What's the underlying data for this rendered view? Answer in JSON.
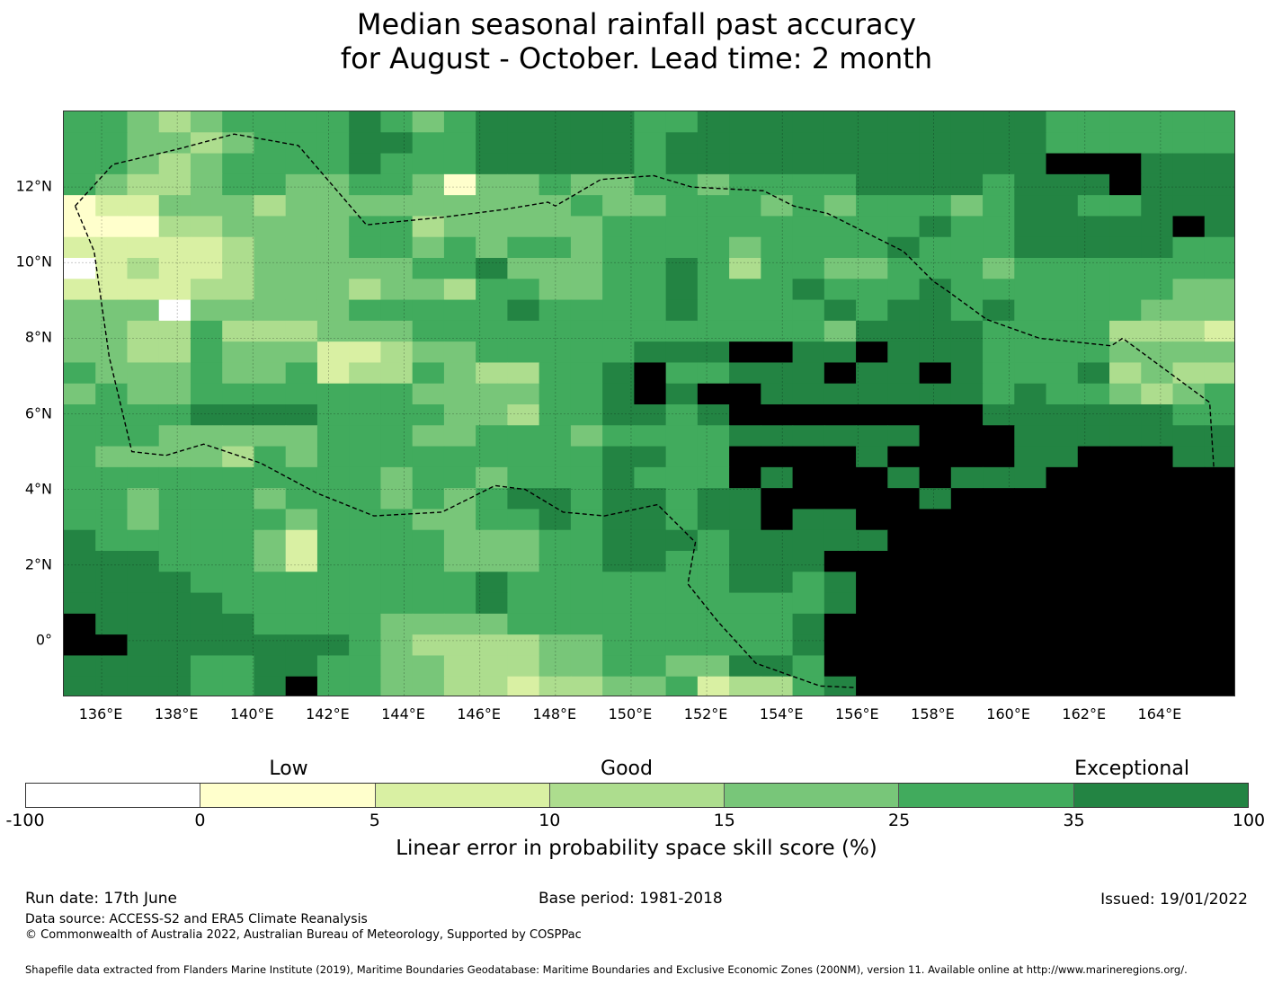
{
  "title_line1": "Median seasonal rainfall past accuracy",
  "title_line2": "for August - October. Lead time: 2 month",
  "map": {
    "lon_range": [
      135,
      166
    ],
    "lat_range": [
      -1.5,
      14.0
    ],
    "cell_size_deg": 0.83,
    "lat_ticks": [
      {
        "value": 12,
        "label": "12°N"
      },
      {
        "value": 10,
        "label": "10°N"
      },
      {
        "value": 8,
        "label": "8°N"
      },
      {
        "value": 6,
        "label": "6°N"
      },
      {
        "value": 4,
        "label": "4°N"
      },
      {
        "value": 2,
        "label": "2°N"
      },
      {
        "value": 0,
        "label": "0°"
      }
    ],
    "lon_ticks": [
      {
        "value": 136,
        "label": "136°E"
      },
      {
        "value": 138,
        "label": "138°E"
      },
      {
        "value": 140,
        "label": "140°E"
      },
      {
        "value": 142,
        "label": "142°E"
      },
      {
        "value": 144,
        "label": "144°E"
      },
      {
        "value": 146,
        "label": "146°E"
      },
      {
        "value": 148,
        "label": "148°E"
      },
      {
        "value": 150,
        "label": "150°E"
      },
      {
        "value": 152,
        "label": "152°E"
      },
      {
        "value": 154,
        "label": "154°E"
      },
      {
        "value": 156,
        "label": "156°E"
      },
      {
        "value": 158,
        "label": "158°E"
      },
      {
        "value": 160,
        "label": "160°E"
      },
      {
        "value": 162,
        "label": "162°E"
      },
      {
        "value": 164,
        "label": "164°E"
      }
    ],
    "grid": true,
    "eez_boundary": [
      [
        135.3,
        11.5
      ],
      [
        136.3,
        12.6
      ],
      [
        138.0,
        13.0
      ],
      [
        139.5,
        13.4
      ],
      [
        141.2,
        13.1
      ],
      [
        143.0,
        11.0
      ],
      [
        145.0,
        11.2
      ],
      [
        146.6,
        11.4
      ],
      [
        147.8,
        11.6
      ],
      [
        148.0,
        11.5
      ],
      [
        149.2,
        12.2
      ],
      [
        150.6,
        12.3
      ],
      [
        151.6,
        12.0
      ],
      [
        153.5,
        11.9
      ],
      [
        154.3,
        11.5
      ],
      [
        155.2,
        11.3
      ],
      [
        157.2,
        10.3
      ],
      [
        158.0,
        9.5
      ],
      [
        158.3,
        9.3
      ],
      [
        159.4,
        8.5
      ],
      [
        160.8,
        8.0
      ],
      [
        162.7,
        7.8
      ],
      [
        163.0,
        8.0
      ],
      [
        165.3,
        6.3
      ],
      [
        165.5,
        3.1
      ],
      [
        164.8,
        2.2
      ],
      [
        163.8,
        1.9
      ],
      [
        162.6,
        1.9
      ],
      [
        160.8,
        2.8
      ],
      [
        159.3,
        3.1
      ],
      [
        158.0,
        2.4
      ],
      [
        157.9,
        1.8
      ],
      [
        157.3,
        -1.3
      ],
      [
        155.0,
        -1.2
      ],
      [
        153.3,
        -0.6
      ],
      [
        152.3,
        0.5
      ],
      [
        151.5,
        1.5
      ],
      [
        151.7,
        2.6
      ],
      [
        150.7,
        3.6
      ],
      [
        149.3,
        3.3
      ],
      [
        148.2,
        3.4
      ],
      [
        147.2,
        4.0
      ],
      [
        146.4,
        4.1
      ],
      [
        145.8,
        3.8
      ],
      [
        145.0,
        3.4
      ],
      [
        143.2,
        3.3
      ],
      [
        141.7,
        3.9
      ],
      [
        140.2,
        4.7
      ],
      [
        139.6,
        4.9
      ],
      [
        138.7,
        5.2
      ],
      [
        137.7,
        4.9
      ],
      [
        136.8,
        5.0
      ],
      [
        136.2,
        7.5
      ],
      [
        135.8,
        10.3
      ],
      [
        135.3,
        11.5
      ]
    ],
    "skill_cells": [
      [
        5,
        5,
        4,
        3,
        4,
        5,
        5,
        5,
        5,
        6,
        5,
        4,
        5,
        6,
        6,
        6,
        6,
        6,
        5,
        5,
        6,
        6,
        6,
        6,
        6,
        6,
        6,
        6,
        6,
        6,
        6,
        5,
        5,
        5,
        5,
        5,
        5
      ],
      [
        5,
        5,
        4,
        4,
        3,
        4,
        5,
        5,
        5,
        6,
        6,
        5,
        5,
        6,
        6,
        6,
        6,
        6,
        5,
        6,
        6,
        6,
        6,
        6,
        6,
        6,
        6,
        6,
        6,
        6,
        6,
        5,
        5,
        5,
        5,
        5,
        5
      ],
      [
        5,
        5,
        4,
        3,
        4,
        5,
        5,
        5,
        5,
        6,
        5,
        5,
        5,
        6,
        6,
        6,
        6,
        6,
        5,
        6,
        6,
        6,
        6,
        6,
        6,
        6,
        6,
        6,
        6,
        6,
        6,
        7,
        7,
        7,
        6,
        6,
        6
      ],
      [
        5,
        4,
        3,
        3,
        4,
        5,
        5,
        4,
        4,
        5,
        5,
        4,
        1,
        4,
        4,
        5,
        4,
        4,
        5,
        5,
        4,
        5,
        5,
        5,
        5,
        6,
        6,
        6,
        6,
        5,
        6,
        6,
        6,
        7,
        6,
        6,
        6
      ],
      [
        1,
        2,
        2,
        4,
        4,
        4,
        3,
        4,
        4,
        4,
        4,
        4,
        4,
        4,
        4,
        4,
        5,
        4,
        4,
        5,
        5,
        5,
        4,
        5,
        4,
        5,
        5,
        5,
        4,
        5,
        6,
        6,
        5,
        5,
        6,
        6,
        6
      ],
      [
        1,
        1,
        1,
        3,
        3,
        4,
        4,
        4,
        4,
        5,
        5,
        3,
        4,
        4,
        4,
        4,
        4,
        5,
        5,
        5,
        5,
        5,
        5,
        5,
        5,
        5,
        5,
        6,
        5,
        5,
        6,
        6,
        6,
        6,
        6,
        7,
        6
      ],
      [
        2,
        2,
        2,
        2,
        2,
        3,
        4,
        4,
        4,
        5,
        5,
        4,
        5,
        4,
        5,
        5,
        4,
        5,
        5,
        5,
        5,
        4,
        5,
        5,
        5,
        5,
        6,
        5,
        5,
        5,
        6,
        6,
        6,
        6,
        6,
        5,
        5
      ],
      [
        0,
        2,
        3,
        2,
        2,
        3,
        4,
        4,
        4,
        4,
        4,
        5,
        5,
        6,
        4,
        4,
        4,
        5,
        5,
        6,
        5,
        3,
        5,
        5,
        4,
        4,
        5,
        5,
        5,
        4,
        5,
        5,
        5,
        5,
        5,
        5,
        5
      ],
      [
        2,
        2,
        2,
        2,
        3,
        3,
        4,
        4,
        4,
        3,
        4,
        4,
        3,
        5,
        5,
        4,
        4,
        5,
        5,
        6,
        5,
        5,
        5,
        6,
        5,
        5,
        5,
        6,
        5,
        5,
        5,
        5,
        5,
        5,
        5,
        4,
        4
      ],
      [
        4,
        4,
        4,
        0,
        4,
        4,
        4,
        4,
        4,
        5,
        5,
        5,
        5,
        5,
        6,
        5,
        5,
        5,
        5,
        6,
        5,
        5,
        5,
        5,
        6,
        5,
        6,
        6,
        5,
        6,
        5,
        5,
        5,
        5,
        4,
        4,
        4
      ],
      [
        4,
        4,
        3,
        3,
        5,
        3,
        3,
        3,
        4,
        4,
        4,
        5,
        5,
        5,
        5,
        5,
        5,
        5,
        5,
        5,
        5,
        5,
        5,
        5,
        4,
        6,
        6,
        6,
        6,
        5,
        5,
        5,
        5,
        3,
        3,
        3,
        2
      ],
      [
        4,
        4,
        3,
        3,
        5,
        4,
        4,
        4,
        2,
        2,
        3,
        4,
        4,
        5,
        5,
        5,
        5,
        5,
        6,
        6,
        6,
        7,
        7,
        6,
        6,
        7,
        6,
        6,
        6,
        5,
        5,
        5,
        5,
        4,
        4,
        4,
        4
      ],
      [
        5,
        4,
        4,
        4,
        5,
        4,
        4,
        5,
        2,
        3,
        3,
        5,
        4,
        3,
        3,
        5,
        5,
        6,
        7,
        5,
        5,
        6,
        6,
        6,
        7,
        6,
        6,
        7,
        6,
        5,
        5,
        5,
        6,
        3,
        4,
        3,
        3
      ],
      [
        4,
        5,
        4,
        4,
        5,
        5,
        5,
        5,
        5,
        5,
        5,
        4,
        4,
        4,
        4,
        5,
        5,
        6,
        7,
        6,
        7,
        7,
        6,
        6,
        6,
        6,
        6,
        6,
        6,
        5,
        6,
        5,
        5,
        4,
        3,
        4,
        5
      ],
      [
        5,
        5,
        5,
        5,
        6,
        6,
        6,
        6,
        5,
        5,
        5,
        5,
        4,
        4,
        3,
        5,
        5,
        6,
        6,
        5,
        6,
        7,
        7,
        7,
        7,
        7,
        7,
        7,
        7,
        6,
        6,
        6,
        6,
        6,
        6,
        5,
        5
      ],
      [
        5,
        5,
        5,
        4,
        4,
        4,
        4,
        4,
        5,
        5,
        5,
        4,
        4,
        5,
        5,
        5,
        4,
        5,
        5,
        5,
        5,
        6,
        6,
        6,
        6,
        6,
        6,
        7,
        7,
        7,
        6,
        6,
        6,
        6,
        6,
        6,
        6
      ],
      [
        5,
        4,
        4,
        4,
        4,
        3,
        5,
        4,
        5,
        5,
        5,
        5,
        5,
        5,
        5,
        5,
        5,
        6,
        6,
        5,
        5,
        7,
        7,
        7,
        7,
        6,
        7,
        7,
        7,
        7,
        6,
        6,
        7,
        7,
        7,
        6,
        6
      ],
      [
        5,
        5,
        5,
        5,
        5,
        5,
        5,
        5,
        5,
        5,
        4,
        5,
        5,
        4,
        5,
        5,
        5,
        6,
        5,
        5,
        5,
        7,
        6,
        7,
        7,
        7,
        6,
        7,
        6,
        6,
        6,
        7,
        7,
        7,
        7,
        7,
        7
      ],
      [
        5,
        5,
        4,
        5,
        5,
        5,
        4,
        5,
        5,
        5,
        4,
        5,
        4,
        5,
        6,
        6,
        5,
        6,
        6,
        5,
        6,
        6,
        7,
        7,
        7,
        7,
        7,
        6,
        7,
        7,
        7,
        7,
        7,
        7,
        7,
        7,
        7
      ],
      [
        5,
        5,
        4,
        5,
        5,
        5,
        5,
        4,
        5,
        5,
        5,
        4,
        4,
        5,
        5,
        6,
        5,
        6,
        6,
        5,
        6,
        6,
        7,
        6,
        6,
        7,
        7,
        7,
        7,
        7,
        7,
        7,
        7,
        7,
        7,
        7,
        7
      ],
      [
        6,
        5,
        5,
        5,
        5,
        5,
        4,
        2,
        5,
        5,
        5,
        5,
        4,
        4,
        4,
        5,
        5,
        6,
        6,
        6,
        5,
        6,
        6,
        6,
        6,
        6,
        7,
        7,
        7,
        7,
        7,
        7,
        7,
        7,
        7,
        7,
        7
      ],
      [
        6,
        6,
        6,
        5,
        5,
        5,
        4,
        2,
        5,
        5,
        5,
        5,
        4,
        4,
        4,
        5,
        5,
        6,
        6,
        5,
        5,
        6,
        6,
        6,
        7,
        7,
        7,
        7,
        7,
        7,
        7,
        7,
        7,
        7,
        7,
        7,
        7
      ],
      [
        6,
        6,
        6,
        6,
        5,
        5,
        5,
        5,
        5,
        5,
        5,
        5,
        5,
        6,
        5,
        5,
        5,
        5,
        5,
        5,
        5,
        6,
        6,
        5,
        6,
        7,
        7,
        7,
        7,
        7,
        7,
        7,
        7,
        7,
        7,
        7,
        7
      ],
      [
        6,
        6,
        6,
        6,
        6,
        5,
        5,
        5,
        5,
        5,
        5,
        5,
        5,
        6,
        5,
        5,
        5,
        5,
        5,
        5,
        5,
        5,
        5,
        5,
        6,
        7,
        7,
        7,
        7,
        7,
        7,
        7,
        7,
        7,
        7,
        7,
        7
      ],
      [
        7,
        6,
        6,
        6,
        6,
        6,
        5,
        5,
        5,
        5,
        4,
        4,
        4,
        4,
        5,
        5,
        5,
        5,
        5,
        5,
        5,
        5,
        5,
        6,
        7,
        7,
        7,
        7,
        7,
        7,
        7,
        7,
        7,
        7,
        7,
        7,
        7
      ],
      [
        7,
        7,
        6,
        6,
        6,
        6,
        6,
        6,
        6,
        5,
        4,
        3,
        3,
        3,
        3,
        4,
        4,
        5,
        5,
        5,
        5,
        5,
        5,
        6,
        7,
        7,
        7,
        7,
        7,
        7,
        7,
        7,
        7,
        7,
        7,
        7,
        7
      ],
      [
        6,
        6,
        6,
        6,
        5,
        5,
        6,
        6,
        5,
        5,
        4,
        4,
        3,
        3,
        3,
        4,
        4,
        5,
        5,
        4,
        4,
        6,
        6,
        5,
        7,
        7,
        7,
        7,
        7,
        7,
        7,
        7,
        7,
        7,
        7,
        7,
        7
      ],
      [
        6,
        6,
        6,
        6,
        5,
        5,
        6,
        7,
        5,
        5,
        4,
        4,
        3,
        3,
        2,
        3,
        3,
        4,
        4,
        5,
        2,
        3,
        3,
        5,
        6,
        7,
        7,
        7,
        7,
        7,
        7,
        7,
        7,
        7,
        7,
        7,
        7
      ]
    ]
  },
  "colorbar": {
    "colors": [
      "#ffffff",
      "#ffffcc",
      "#d9f0a3",
      "#addd8e",
      "#78c679",
      "#41ab5d",
      "#238443"
    ],
    "ticks": [
      "-100",
      "0",
      "5",
      "10",
      "15",
      "25",
      "35",
      "100"
    ],
    "categories": {
      "low": "Low",
      "good": "Good",
      "exceptional": "Exceptional"
    },
    "label": "Linear error in probability space skill score (%)"
  },
  "footer": {
    "run_date": "Run date: 17th June",
    "base_period": "Base period: 1981-2018",
    "issued": "Issued: 19/01/2022",
    "data_source": "Data source: ACCESS-S2 and ERA5 Climate Reanalysis",
    "copyright": "© Commonwealth of Australia 2022, Australian Bureau of Meteorology, Supported by COSPPac",
    "shapefile": "Shapefile data extracted from Flanders Marine Institute (2019), Maritime Boundaries Geodatabase: Maritime Boundaries and Exclusive Economic Zones (200NM), version 11. Available online at http://www.marineregions.org/."
  }
}
